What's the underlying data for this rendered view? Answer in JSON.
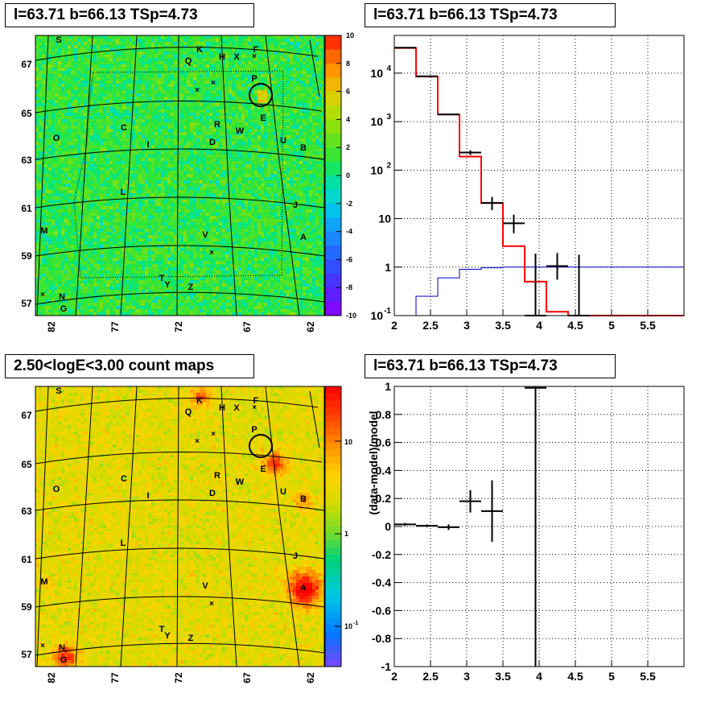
{
  "titles": {
    "top_left": "l=63.71 b=66.13 TSp=4.73",
    "top_right": "l=63.71 b=66.13 TSp=4.73",
    "bottom_left": "2.50<logE<3.00 count maps",
    "bottom_right": "l=63.71 b=66.13 TSp=4.73"
  },
  "map_axes": {
    "x_ticks": [
      "82",
      "77",
      "72",
      "67",
      "62"
    ],
    "y_ticks": [
      "67",
      "65",
      "63",
      "61",
      "59",
      "57"
    ]
  },
  "residual_colorbar_ticks": [
    "10",
    "8",
    "6",
    "4",
    "2",
    "0",
    "-2",
    "-4",
    "-6",
    "-8",
    "-10"
  ],
  "count_colorbar_ticks": [
    "10",
    "1",
    "10",
    "-1"
  ],
  "source_labels": [
    "S",
    "K",
    "F",
    "Q",
    "H",
    "X",
    "P",
    "E",
    "C",
    "B",
    "W",
    "I",
    "D",
    "U",
    "O",
    "L",
    "J",
    "M",
    "V",
    "A",
    "T",
    "Y",
    "Z",
    "N",
    "G",
    "R"
  ],
  "colors": {
    "model_red": "#ff0000",
    "model_blue": "#0000cc",
    "data_black": "#000000",
    "marker": "#000000"
  },
  "chart_data": [
    {
      "type": "heatmap",
      "title": "l=63.71 b=66.13 TSp=4.73",
      "xlabel": "",
      "ylabel": "",
      "x_ticks": [
        82,
        77,
        72,
        67,
        62
      ],
      "y_ticks": [
        67,
        65,
        63,
        61,
        59,
        57
      ],
      "zlim": [
        -10,
        10
      ],
      "colorbar_ticks": [
        10,
        8,
        6,
        4,
        2,
        0,
        -2,
        -4,
        -6,
        -8,
        -10
      ]
    },
    {
      "type": "line",
      "title": "l=63.71 b=66.13 TSp=4.73",
      "xlabel": "",
      "ylabel": "",
      "xlim": [
        2.0,
        6.0
      ],
      "ylim": [
        0.1,
        60000
      ],
      "y_scale": "log",
      "x_ticks": [
        "2",
        "2.5",
        "3",
        "3.5",
        "4",
        "4.5",
        "5",
        "5.5"
      ],
      "y_ticks": [
        "10^-1",
        "1",
        "10",
        "10^2",
        "10^3",
        "10^4"
      ],
      "series": [
        {
          "style": "step",
          "bin_edges": [
            2.0,
            2.3,
            2.6,
            2.9,
            3.2,
            3.5,
            3.8,
            4.1,
            4.4,
            4.7,
            5.0,
            5.3,
            5.6,
            5.9,
            6.0
          ],
          "values": [
            33000,
            8500,
            1400,
            190,
            21,
            2.7,
            0.5,
            0.12,
            0.1,
            0.1,
            0.1,
            0.1,
            0.1,
            0.1
          ]
        },
        {
          "style": "step",
          "bin_edges": [
            2.0,
            2.3,
            2.6,
            2.9,
            3.2,
            3.5,
            3.8,
            4.1,
            4.4,
            4.7,
            5.0,
            5.3,
            5.6,
            5.9,
            6.0
          ],
          "values": [
            0.06,
            0.25,
            0.6,
            0.9,
            0.97,
            1.0,
            1.0,
            1.0,
            1.0,
            1.0,
            1.0,
            1.0,
            1.0,
            1.0
          ]
        },
        {
          "style": "errorbar",
          "x": [
            2.15,
            2.45,
            2.75,
            3.05,
            3.35,
            3.65,
            3.95,
            4.25,
            4.55
          ],
          "xerr": [
            0.15,
            0.15,
            0.15,
            0.15,
            0.15,
            0.15,
            0.15,
            0.15,
            0.15
          ],
          "y": [
            33500,
            8600,
            1410,
            230,
            21,
            8,
            0.1,
            1.05,
            0.1
          ],
          "y_lo": [
            33000,
            8500,
            1390,
            205,
            15,
            5,
            0.1,
            0.55,
            0.1
          ],
          "y_hi": [
            34000,
            8700,
            1430,
            255,
            28,
            12,
            1.9,
            1.95,
            1.8
          ]
        }
      ]
    },
    {
      "type": "heatmap",
      "title": "2.50<logE<3.00 count maps",
      "xlabel": "",
      "ylabel": "",
      "x_ticks": [
        82,
        77,
        72,
        67,
        62
      ],
      "y_ticks": [
        67,
        65,
        63,
        61,
        59,
        57
      ],
      "z_scale": "log",
      "colorbar_ticks": [
        "10",
        "1",
        "10^-1"
      ]
    },
    {
      "type": "scatter",
      "title": "l=63.71 b=66.13 TSp=4.73",
      "xlabel": "",
      "ylabel": "(data-model)/model",
      "xlim": [
        2.0,
        6.0
      ],
      "ylim": [
        -1,
        1
      ],
      "x_ticks": [
        "2",
        "2.5",
        "3",
        "3.5",
        "4",
        "4.5",
        "5",
        "5.5"
      ],
      "y_ticks": [
        "1",
        "0.8",
        "0.6",
        "0.4",
        "0.2",
        "0",
        "-0.2",
        "-0.4",
        "-0.6",
        "-0.8",
        "-1"
      ],
      "series": [
        {
          "x": [
            2.15,
            2.45,
            2.75,
            3.05,
            3.35,
            3.95
          ],
          "xerr": [
            0.15,
            0.15,
            0.15,
            0.15,
            0.15,
            0.15
          ],
          "y": [
            0.015,
            0.005,
            -0.005,
            0.18,
            0.11,
            0.99
          ],
          "yerr": [
            0.01,
            0.01,
            0.02,
            0.08,
            0.22,
            1.99
          ]
        }
      ]
    }
  ]
}
